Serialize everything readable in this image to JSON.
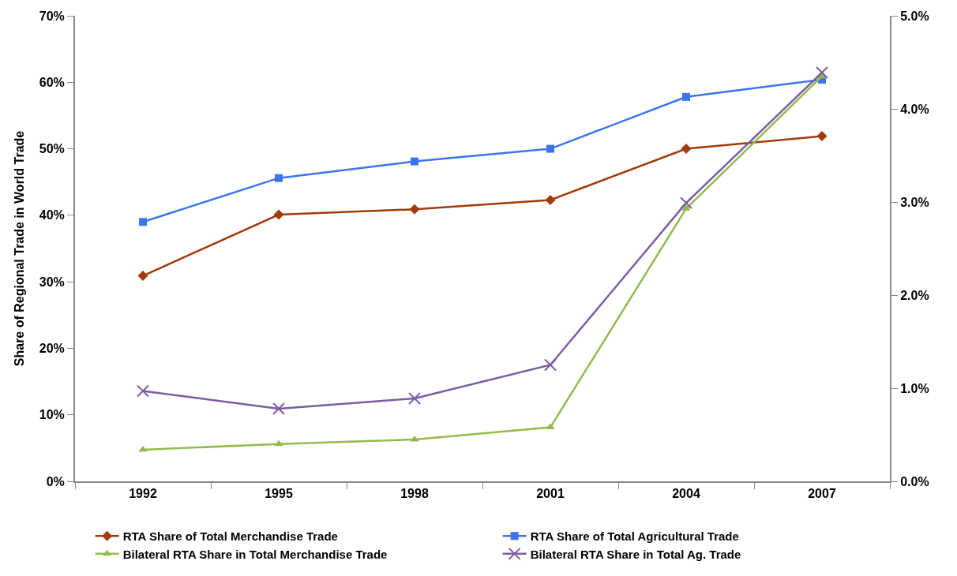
{
  "chart_data": {
    "type": "line",
    "ylabel": "Share of Regional Trade in World Trade",
    "categories": [
      "1992",
      "1995",
      "1998",
      "2001",
      "2004",
      "2007"
    ],
    "series": [
      {
        "name": "RTA Share of Total Merchandise Trade",
        "color": "#a33a0c",
        "marker": "diamond",
        "values": [
          30.9,
          40.1,
          40.9,
          42.3,
          50.0,
          51.9
        ]
      },
      {
        "name": "RTA Share of Total Agricultural Trade",
        "color": "#3b74f2",
        "marker": "square",
        "values": [
          39.0,
          45.6,
          48.1,
          50.0,
          57.8,
          60.4
        ]
      },
      {
        "name": "Bilateral RTA Share in Total Merchandise Trade",
        "color": "#92bb4e",
        "marker": "triangle",
        "axis": "y2",
        "values": [
          0.34,
          0.4,
          0.45,
          0.58,
          2.93,
          4.35
        ]
      },
      {
        "name": "Bilateral RTA Share in Total Ag. Trade",
        "color": "#7d5ca3",
        "marker": "cross",
        "axis": "y2",
        "values": [
          0.97,
          0.78,
          0.89,
          1.25,
          2.99,
          4.39
        ]
      }
    ],
    "ylim": [
      0,
      70
    ],
    "yticks": [
      {
        "value": 0,
        "label": "0%"
      },
      {
        "value": 10,
        "label": "10%"
      },
      {
        "value": 20,
        "label": "20%"
      },
      {
        "value": 30,
        "label": "30%"
      },
      {
        "value": 40,
        "label": "40%"
      },
      {
        "value": 50,
        "label": "50%"
      },
      {
        "value": 60,
        "label": "60%"
      },
      {
        "value": 70,
        "label": "70%"
      }
    ],
    "y2lim": [
      0,
      5
    ],
    "y2ticks": [
      {
        "value": 0,
        "label": "0.0%"
      },
      {
        "value": 1,
        "label": "1.0%"
      },
      {
        "value": 2,
        "label": "2.0%"
      },
      {
        "value": 3,
        "label": "3.0%"
      },
      {
        "value": 4,
        "label": "4.0%"
      },
      {
        "value": 5,
        "label": "5.0%"
      }
    ],
    "legend": "bottom",
    "line_style": "solid"
  }
}
